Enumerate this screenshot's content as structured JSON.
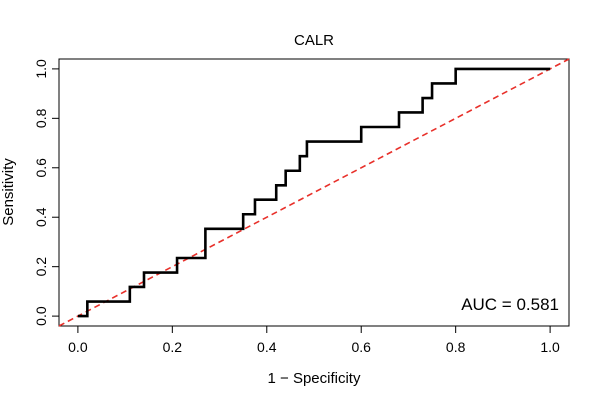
{
  "chart_data": {
    "type": "line",
    "title": "CALR",
    "xlabel": "1 − Specificity",
    "ylabel": "Sensitivity",
    "xlim": [
      -0.04,
      1.04
    ],
    "ylim": [
      -0.04,
      1.04
    ],
    "xticks": [
      0.0,
      0.2,
      0.4,
      0.6,
      0.8,
      1.0
    ],
    "yticks": [
      0.0,
      0.2,
      0.4,
      0.6,
      0.8,
      1.0
    ],
    "xtick_labels": [
      "0.0",
      "0.2",
      "0.4",
      "0.6",
      "0.8",
      "1.0"
    ],
    "ytick_labels": [
      "0.0",
      "0.2",
      "0.4",
      "0.6",
      "0.8",
      "1.0"
    ],
    "annotation": "AUC = 0.581",
    "series": [
      {
        "name": "ROC curve",
        "color": "#000000",
        "x": [
          0.0,
          0.02,
          0.02,
          0.11,
          0.11,
          0.14,
          0.14,
          0.21,
          0.21,
          0.27,
          0.27,
          0.35,
          0.35,
          0.375,
          0.375,
          0.42,
          0.42,
          0.44,
          0.44,
          0.47,
          0.47,
          0.485,
          0.485,
          0.6,
          0.6,
          0.68,
          0.68,
          0.73,
          0.73,
          0.75,
          0.75,
          0.8,
          0.8,
          1.0
        ],
        "y": [
          0.0,
          0.0,
          0.059,
          0.059,
          0.118,
          0.118,
          0.176,
          0.176,
          0.235,
          0.235,
          0.353,
          0.353,
          0.412,
          0.412,
          0.471,
          0.471,
          0.529,
          0.529,
          0.588,
          0.588,
          0.647,
          0.647,
          0.706,
          0.706,
          0.765,
          0.765,
          0.824,
          0.824,
          0.882,
          0.882,
          0.941,
          0.941,
          1.0,
          1.0
        ]
      },
      {
        "name": "Reference line",
        "color": "#e8302a",
        "style": "dashed",
        "x": [
          -0.04,
          1.04
        ],
        "y": [
          -0.04,
          1.04
        ]
      }
    ]
  }
}
